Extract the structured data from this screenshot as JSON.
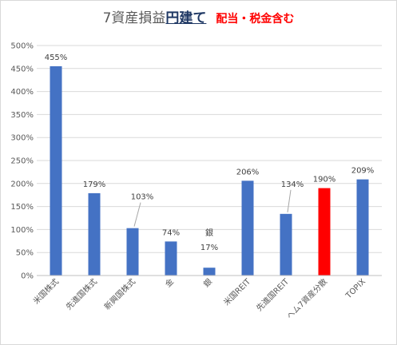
{
  "title": {
    "main": "7資産損益",
    "emphasis": "円建て",
    "note": "配当・税金含む"
  },
  "chart_data": {
    "type": "bar",
    "categories": [
      "米国株式",
      "先進国株式",
      "新興国株式",
      "金",
      "銀",
      "米国REIT",
      "先進国REIT",
      "ヘム7資産分散",
      "TOPIX"
    ],
    "values": [
      455,
      179,
      103,
      74,
      17,
      206,
      134,
      190,
      209
    ],
    "data_labels": [
      "455%",
      "179%",
      "103%",
      "74%",
      "17%",
      "206%",
      "134%",
      "190%",
      "209%"
    ],
    "annotation": "銀",
    "y_ticks": [
      "0%",
      "50%",
      "100%",
      "150%",
      "200%",
      "250%",
      "300%",
      "350%",
      "400%",
      "450%",
      "500%"
    ],
    "ylim": [
      0,
      500
    ],
    "grid": true,
    "legend": "none",
    "colors": {
      "bar": "#4472c4",
      "highlight": "#ff0000",
      "grid": "#d9d9d9",
      "text": "#595959"
    },
    "highlight_index": 7
  }
}
